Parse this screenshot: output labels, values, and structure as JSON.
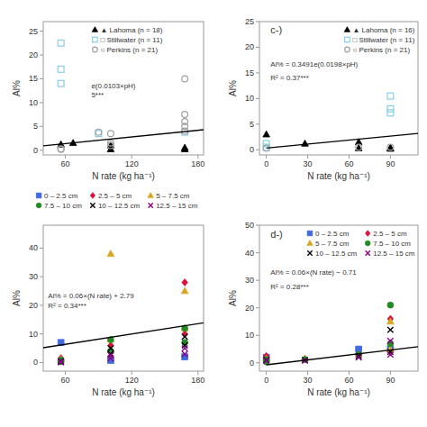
{
  "chart_data": [
    {
      "type": "scatter",
      "xlabel": "N rate (kg ha⁻¹)",
      "ylabel": "Al%",
      "xlim": [
        40,
        185
      ],
      "ylim": [
        -1,
        27
      ],
      "xticks": [
        60,
        120,
        180
      ],
      "yticks": [
        0,
        5,
        10,
        15,
        20,
        25
      ],
      "legend": "upper left",
      "annotations": [
        "e(0.0103×pH)",
        "5***"
      ],
      "series": [
        {
          "name": "▲ Lahoma (n = 18)",
          "color": "#000000",
          "marker": "triangle",
          "x": [
            56,
            67,
            101,
            101,
            168,
            168
          ],
          "values": [
            1.2,
            1.5,
            1.0,
            0.2,
            0.5,
            0.2
          ]
        },
        {
          "name": "□ Stillwater (n = 11)",
          "color": "#87CEEB",
          "marker": "square-open",
          "x": [
            56,
            56,
            56,
            90,
            168
          ],
          "values": [
            22.5,
            17.0,
            14.0,
            3.5,
            3.8
          ]
        },
        {
          "name": "○ Perkins (n = 21)",
          "color": "#a0a0a0",
          "marker": "circle-open",
          "x": [
            56,
            56,
            90,
            101,
            101,
            101,
            168,
            168,
            168,
            168,
            168
          ],
          "values": [
            0.3,
            0.2,
            3.8,
            3.5,
            1.5,
            1.0,
            15.0,
            7.5,
            6.0,
            5.0,
            4.0
          ]
        },
        {
          "type": "line",
          "color": "#000000",
          "line_style": "solid",
          "x": [
            40,
            185
          ],
          "values": [
            0.9,
            4.3
          ]
        }
      ]
    },
    {
      "type": "scatter",
      "xlabel": "N rate (kg ha⁻¹)",
      "ylabel": "Al%",
      "xlim": [
        -5,
        110
      ],
      "ylim": [
        -1,
        25
      ],
      "xticks": [
        0,
        30,
        60,
        90
      ],
      "yticks": [
        0,
        5,
        10,
        15,
        20,
        25
      ],
      "legend": "upper right",
      "annotations": [
        "c-)",
        "Al% = 0.3491e(0.0198×pH)",
        "R² = 0.37***"
      ],
      "series": [
        {
          "name": "▲ Lahoma (n = 16)",
          "color": "#000000",
          "marker": "triangle",
          "x": [
            0,
            28,
            67,
            67,
            90,
            90
          ],
          "values": [
            3.0,
            1.2,
            0.3,
            1.5,
            0.4,
            0.2
          ]
        },
        {
          "name": "□ Stillwater (n = 11)",
          "color": "#87CEEB",
          "marker": "square-open",
          "x": [
            0,
            0,
            90,
            90,
            90
          ],
          "values": [
            1.2,
            0.5,
            10.5,
            8.0,
            7.2
          ]
        },
        {
          "name": "○ Perkins (n = 21)",
          "color": "#a0a0a0",
          "marker": "circle-open",
          "x": [
            0,
            67,
            90
          ],
          "values": [
            0.3,
            0.5,
            0.5
          ]
        },
        {
          "type": "line",
          "color": "#000000",
          "line_style": "solid",
          "x": [
            0,
            110
          ],
          "values": [
            0.35,
            3.2
          ]
        }
      ]
    },
    {
      "type": "scatter",
      "xlabel": "N rate (kg ha⁻¹)",
      "ylabel": "Al%",
      "xlim": [
        40,
        185
      ],
      "ylim": [
        -3,
        48
      ],
      "xticks": [
        60,
        120,
        180
      ],
      "yticks": [
        0,
        10,
        20,
        30,
        40
      ],
      "legend": "upper left",
      "annotations": [
        "Al% = 0.06×(N rate) + 2.79",
        "R² = 0.34***"
      ],
      "series": [
        {
          "name": "0 – 2.5 cm",
          "color": "#4169E1",
          "marker": "square",
          "x": [
            56,
            101,
            168
          ],
          "values": [
            7.0,
            0.8,
            2.0
          ]
        },
        {
          "name": "2.5 – 5 cm",
          "color": "#DC143C",
          "marker": "diamond",
          "x": [
            56,
            56,
            101,
            101,
            168,
            168
          ],
          "values": [
            1.5,
            0.5,
            6.0,
            3.5,
            28.0,
            10.0
          ]
        },
        {
          "name": "5 – 7.5 cm",
          "color": "#DAA520",
          "marker": "triangle",
          "x": [
            56,
            101,
            101,
            168,
            168
          ],
          "values": [
            1.0,
            38.0,
            8.0,
            25.0,
            12.0
          ]
        },
        {
          "name": "7.5 – 10 cm",
          "color": "#228B22",
          "marker": "circle",
          "x": [
            56,
            56,
            101,
            101,
            168,
            168
          ],
          "values": [
            0.8,
            0.3,
            8.0,
            4.0,
            12.0,
            7.0
          ]
        },
        {
          "name": "10 – 12.5 cm",
          "color": "#000000",
          "marker": "x",
          "x": [
            56,
            56,
            101,
            101,
            168,
            168
          ],
          "values": [
            0.5,
            0.2,
            5.0,
            3.0,
            9.0,
            6.0
          ]
        },
        {
          "name": "12.5 – 15 cm",
          "color": "#8B008B",
          "marker": "x",
          "x": [
            56,
            56,
            101,
            101,
            168,
            168
          ],
          "values": [
            0.3,
            0.1,
            2.5,
            1.5,
            5.0,
            3.0
          ]
        },
        {
          "type": "line",
          "color": "#000000",
          "line_style": "solid",
          "x": [
            40,
            185
          ],
          "values": [
            5.19,
            13.91
          ]
        }
      ]
    },
    {
      "type": "scatter",
      "xlabel": "N rate (kg ha⁻¹)",
      "ylabel": "Al%",
      "xlim": [
        -5,
        110
      ],
      "ylim": [
        -3,
        50
      ],
      "xticks": [
        0,
        30,
        60,
        90
      ],
      "yticks": [
        0,
        10,
        20,
        30,
        40,
        50
      ],
      "legend": "upper right",
      "annotations": [
        "d-)",
        "Al% = 0.06×(N rate) − 0.71",
        "R² = 0.28***"
      ],
      "series": [
        {
          "name": "0 – 2.5 cm",
          "color": "#4169E1",
          "marker": "square",
          "x": [
            0,
            67,
            90
          ],
          "values": [
            2.0,
            5.0,
            5.0
          ]
        },
        {
          "name": "2.5 – 5 cm",
          "color": "#DC143C",
          "marker": "diamond",
          "x": [
            0,
            0,
            28,
            67,
            90,
            90
          ],
          "values": [
            2.5,
            0.8,
            1.5,
            3.0,
            16.0,
            4.0
          ]
        },
        {
          "name": "5 – 7.5 cm",
          "color": "#DAA520",
          "marker": "triangle",
          "x": [
            0,
            28,
            67,
            90,
            90
          ],
          "values": [
            1.5,
            1.5,
            3.0,
            15.0,
            5.0
          ]
        },
        {
          "name": "7.5 – 10 cm",
          "color": "#228B22",
          "marker": "circle",
          "x": [
            0,
            0,
            28,
            67,
            90,
            90
          ],
          "values": [
            1.2,
            0.4,
            1.2,
            3.0,
            21.0,
            7.0
          ]
        },
        {
          "name": "10 – 12.5 cm",
          "color": "#000000",
          "marker": "x",
          "x": [
            0,
            28,
            67,
            90,
            90
          ],
          "values": [
            1.0,
            1.0,
            2.5,
            12.0,
            4.0
          ]
        },
        {
          "name": "12.5 – 15 cm",
          "color": "#8B008B",
          "marker": "x",
          "x": [
            0,
            28,
            67,
            90,
            90
          ],
          "values": [
            0.8,
            0.8,
            2.0,
            8.0,
            3.0
          ]
        },
        {
          "type": "line",
          "color": "#000000",
          "line_style": "solid",
          "x": [
            0,
            110
          ],
          "values": [
            -0.71,
            5.89
          ]
        }
      ]
    }
  ]
}
